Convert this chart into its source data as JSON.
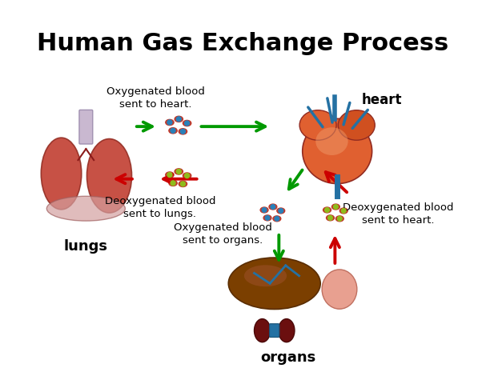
{
  "title": "Human Gas Exchange Process",
  "title_fontsize": 22,
  "title_fontweight": "bold",
  "bg_color": "#ffffff",
  "labels": {
    "lungs": "lungs",
    "heart": "heart",
    "organs": "organs"
  },
  "annotations": {
    "oxy_to_heart": "Oxygenated blood\nsent to heart.",
    "deoxy_to_lungs": "Deoxygenated blood\nsent to lungs.",
    "oxy_to_organs": "Oxygenated blood\nsent to organs.",
    "deoxy_to_heart": "Deoxygenated blood\nsent to heart."
  },
  "colors": {
    "green_arrow": "#009900",
    "red_arrow": "#cc0000",
    "lung_color": "#c0392b",
    "heart_color": "#e06030",
    "organ_color": "#7B3F00",
    "oxy_cell_outer": "#c0392b",
    "oxy_cell_inner": "#2980b9",
    "deoxy_cell_outer": "#c0392b",
    "deoxy_cell_inner": "#8fbc1b",
    "label_color": "#000000",
    "trachea_color": "#c9b8d0",
    "vessel_blue": "#2471A3"
  }
}
